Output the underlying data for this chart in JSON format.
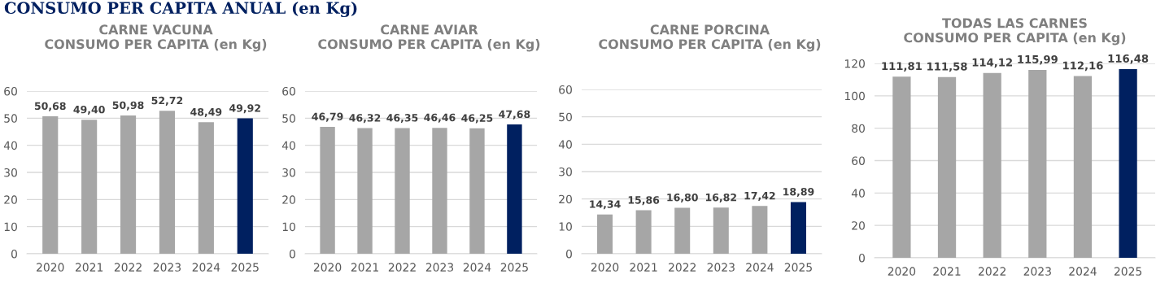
{
  "chart_data": [
    {
      "type": "bar",
      "title": "CARNE VACUNA\nCONSUMO PER CAPITA (en Kg)",
      "annotations": [
        "CONSUMO PER CAPITA ANUAL (en Kg)"
      ],
      "categories": [
        "2020",
        "2021",
        "2022",
        "2023",
        "2024",
        "2025"
      ],
      "values": [
        50.68,
        49.4,
        50.98,
        52.72,
        48.49,
        49.92
      ],
      "value_labels": [
        "50,68",
        "49,40",
        "50,98",
        "52,72",
        "48,49",
        "49,92"
      ],
      "colors": [
        "#a6a6a6",
        "#a6a6a6",
        "#a6a6a6",
        "#a6a6a6",
        "#a6a6a6",
        "#002060"
      ],
      "ylim": [
        0,
        60
      ],
      "yticks": [
        0,
        10,
        20,
        30,
        40,
        50,
        60
      ],
      "grid": "y",
      "legend": false
    },
    {
      "type": "bar",
      "title": "CARNE AVIAR\nCONSUMO PER CAPITA (en Kg)",
      "categories": [
        "2020",
        "2021",
        "2022",
        "2023",
        "2024",
        "2025"
      ],
      "values": [
        46.79,
        46.32,
        46.35,
        46.46,
        46.25,
        47.68
      ],
      "value_labels": [
        "46,79",
        "46,32",
        "46,35",
        "46,46",
        "46,25",
        "47,68"
      ],
      "colors": [
        "#a6a6a6",
        "#a6a6a6",
        "#a6a6a6",
        "#a6a6a6",
        "#a6a6a6",
        "#002060"
      ],
      "ylim": [
        0,
        60
      ],
      "yticks": [
        0,
        10,
        20,
        30,
        40,
        50,
        60
      ],
      "grid": "y",
      "legend": false
    },
    {
      "type": "bar",
      "title": "CARNE PORCINA\nCONSUMO PER CAPITA (en Kg)",
      "categories": [
        "2020",
        "2021",
        "2022",
        "2023",
        "2024",
        "2025"
      ],
      "values": [
        14.34,
        15.86,
        16.8,
        16.82,
        17.42,
        18.89
      ],
      "value_labels": [
        "14,34",
        "15,86",
        "16,80",
        "16,82",
        "17,42",
        "18,89"
      ],
      "colors": [
        "#a6a6a6",
        "#a6a6a6",
        "#a6a6a6",
        "#a6a6a6",
        "#a6a6a6",
        "#002060"
      ],
      "ylim": [
        0,
        60
      ],
      "yticks": [
        0,
        10,
        20,
        30,
        40,
        50,
        60
      ],
      "grid": "y",
      "legend": false
    },
    {
      "type": "bar",
      "title": "TODAS LAS CARNES\nCONSUMO PER CAPITA (en Kg)",
      "categories": [
        "2020",
        "2021",
        "2022",
        "2023",
        "2024",
        "2025"
      ],
      "values": [
        111.81,
        111.58,
        114.12,
        115.99,
        112.16,
        116.48
      ],
      "value_labels": [
        "111,81",
        "111,58",
        "114,12",
        "115,99",
        "112,16",
        "116,48"
      ],
      "colors": [
        "#a6a6a6",
        "#a6a6a6",
        "#a6a6a6",
        "#a6a6a6",
        "#a6a6a6",
        "#002060"
      ],
      "ylim": [
        0,
        120
      ],
      "yticks": [
        0,
        20,
        40,
        60,
        80,
        100,
        120
      ],
      "grid": "y",
      "legend": false
    }
  ]
}
